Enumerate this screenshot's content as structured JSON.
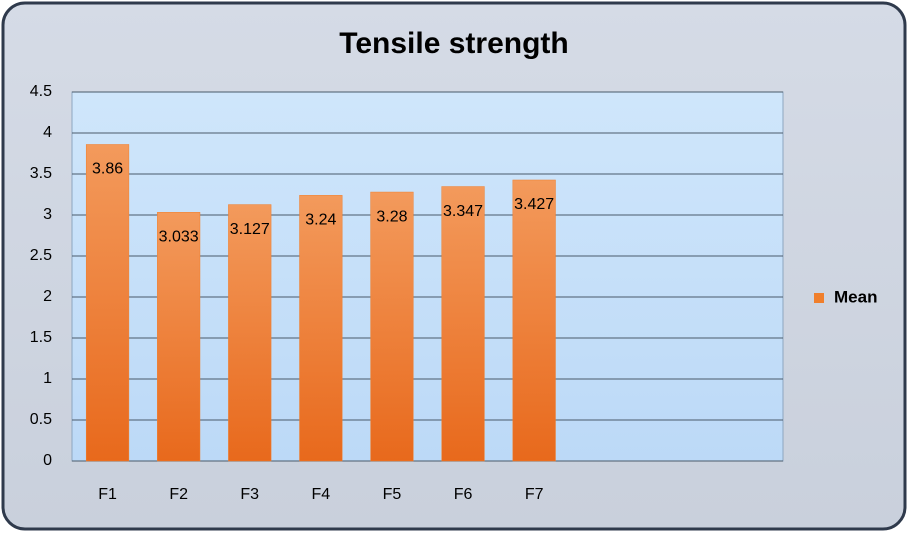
{
  "chart_data": {
    "type": "bar",
    "title": "Tensile strength",
    "categories": [
      "F1",
      "F2",
      "F3",
      "F4",
      "F5",
      "F6",
      "F7",
      null,
      null,
      null
    ],
    "series": [
      {
        "name": "Mean",
        "color": "#f07f2c",
        "values": [
          3.86,
          3.033,
          3.127,
          3.24,
          3.28,
          3.347,
          3.427,
          null,
          null,
          null
        ]
      }
    ],
    "ylim": [
      0,
      4.5
    ],
    "yticks": [
      0,
      0.5,
      1,
      1.5,
      2,
      2.5,
      3,
      3.5,
      4,
      4.5
    ],
    "grid": true,
    "legend": "right"
  }
}
